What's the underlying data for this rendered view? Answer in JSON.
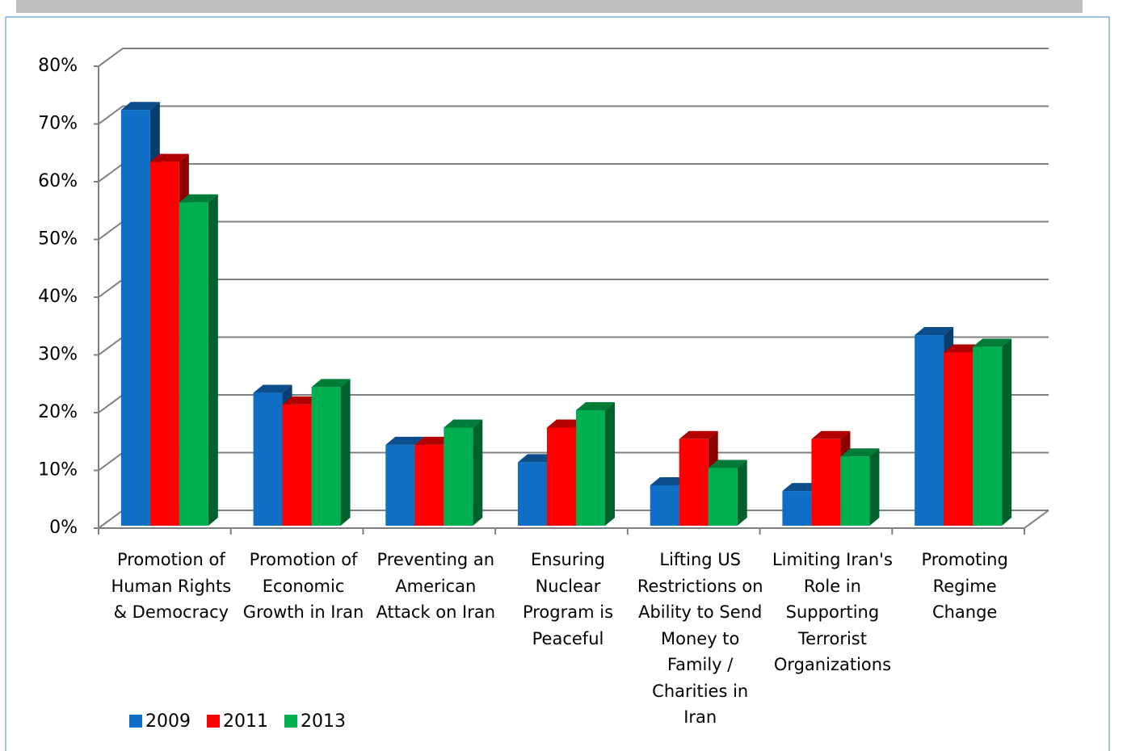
{
  "chart_data": {
    "type": "bar3d",
    "categories": [
      "Promotion of Human Rights & Democracy",
      "Promotion of Economic Growth in Iran",
      "Preventing an American Attack on Iran",
      "Ensuring Nuclear Program is Peaceful",
      "Lifting US Restrictions on Ability to Send Money to Family / Charities in Iran",
      "Limiting Iran's Role in Supporting Terrorist Organizations",
      "Promoting Regime Change"
    ],
    "series": [
      {
        "name": "2009",
        "color": "#0f6fc6",
        "values": [
          72,
          23,
          14,
          11,
          7,
          6,
          33
        ]
      },
      {
        "name": "2011",
        "color": "#ff0000",
        "values": [
          63,
          21,
          14,
          17,
          15,
          15,
          30
        ]
      },
      {
        "name": "2013",
        "color": "#00b050",
        "values": [
          56,
          24,
          17,
          20,
          10,
          12,
          31
        ]
      }
    ],
    "ylim": [
      0,
      80
    ],
    "yticks": [
      {
        "value": 0,
        "label": "0%"
      },
      {
        "value": 10,
        "label": "10%"
      },
      {
        "value": 20,
        "label": "20%"
      },
      {
        "value": 30,
        "label": "30%"
      },
      {
        "value": 40,
        "label": "40%"
      },
      {
        "value": 50,
        "label": "50%"
      },
      {
        "value": 60,
        "label": "60%"
      },
      {
        "value": 70,
        "label": "70%"
      },
      {
        "value": 80,
        "label": "80%"
      }
    ],
    "grid": true,
    "legend": "bottom-left"
  }
}
